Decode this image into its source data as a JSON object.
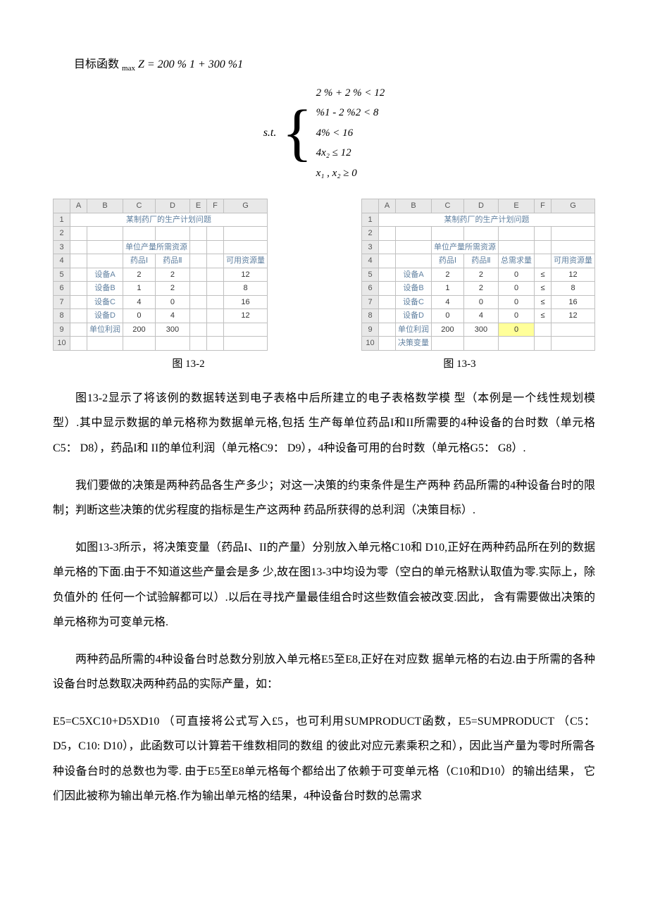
{
  "objective": {
    "label": "目标函数",
    "formula_prefix": "max",
    "formula": "Z = 200 % 1 + 300 %1"
  },
  "constraints": {
    "st": "s.t.",
    "lines": [
      "2 % + 2 % < 12",
      "%1 - 2 %2 < 8",
      "4% < 16",
      "4x₂ ≤ 12",
      "x₁ , x₂ ≥ 0"
    ]
  },
  "table_left": {
    "col_headers": [
      "",
      "A",
      "B",
      "C",
      "D",
      "E",
      "F",
      "G"
    ],
    "title": "某制药厂的生产计划问题",
    "sub_header": "单位产量所需资源",
    "drug1": "药品Ⅰ",
    "drug2": "药品Ⅱ",
    "avail": "可用资源量",
    "rows": [
      {
        "n": "5",
        "label": "设备A",
        "d1": "2",
        "d2": "2",
        "av": "12"
      },
      {
        "n": "6",
        "label": "设备B",
        "d1": "1",
        "d2": "2",
        "av": "8"
      },
      {
        "n": "7",
        "label": "设备C",
        "d1": "4",
        "d2": "0",
        "av": "16"
      },
      {
        "n": "8",
        "label": "设备D",
        "d1": "0",
        "d2": "4",
        "av": "12"
      }
    ],
    "profit_label": "单位利润",
    "profit1": "200",
    "profit2": "300"
  },
  "table_right": {
    "col_headers": [
      "",
      "A",
      "B",
      "C",
      "D",
      "E",
      "F",
      "G"
    ],
    "title": "某制药厂的生产计划问题",
    "sub_header": "单位产量所需资源",
    "drug1": "药品Ⅰ",
    "drug2": "药品Ⅱ",
    "total": "总需求量",
    "avail": "可用资源量",
    "rows": [
      {
        "n": "5",
        "label": "设备A",
        "d1": "2",
        "d2": "2",
        "t": "0",
        "op": "≤",
        "av": "12"
      },
      {
        "n": "6",
        "label": "设备B",
        "d1": "1",
        "d2": "2",
        "t": "0",
        "op": "≤",
        "av": "8"
      },
      {
        "n": "7",
        "label": "设备C",
        "d1": "4",
        "d2": "0",
        "t": "0",
        "op": "≤",
        "av": "16"
      },
      {
        "n": "8",
        "label": "设备D",
        "d1": "0",
        "d2": "4",
        "t": "0",
        "op": "≤",
        "av": "12"
      }
    ],
    "profit_label": "单位利润",
    "profit1": "200",
    "profit2": "300",
    "total_profit": "0",
    "decision_label": "决策变量"
  },
  "captions": {
    "left": "图 13-2",
    "right": "图 13-3"
  },
  "paragraphs": {
    "p1": "图13-2显示了将该例的数据转送到电子表格中后所建立的电子表格数学模 型（本例是一个线性规划模型）.其中显示数据的单元格称为数据单元格,包括 生产每单位药品I和II所需要的4种设备的台时数（单元格C5： D8），药品I和 II的单位利润（单元格C9： D9），4种设备可用的台时数（单元格G5： G8）.",
    "p2": "我们要做的决策是两种药品各生产多少；对这一决策的约束条件是生产两种 药品所需的4种设备台时的限制；判断这些决策的优劣程度的指标是生产这两种 药品所获得的总利润（决策目标）.",
    "p3": "如图13-3所示，将决策变量（药品I、II的产量）分别放入单元格C10和 D10,正好在两种药品所在列的数据单元格的下面.由于不知道这些产量会是多 少,故在图13-3中均设为零（空白的单元格默认取值为零.实际上，除负值外的 任何一个试验解都可以）.以后在寻找产量最佳组合时这些数值会被改变.因此， 含有需要做出决策的单元格称为可变单元格.",
    "p4": "两种药品所需的4种设备台时总数分别放入单元格E5至E8,正好在对应数 据单元格的右边.由于所需的各种设备台时总数取决两种药品的实际产量，如：",
    "p5": "E5=C5XC10+D5XD10 （可直接将公式写入£5，也可利用SUMPRODUCT函数，E5=SUMPRODUCT （C5： D5，C10: D10），此函数可以计算若干维数相同的数组 的彼此对应元素乘积之和），因此当产量为零时所需各种设备台时的总数也为零. 由于E5至E8单元格每个都给出了依赖于可变单元格（C10和D10）的输出结果， 它们因此被称为输出单元格.作为输出单元格的结果，4种设备台时数的总需求"
  }
}
